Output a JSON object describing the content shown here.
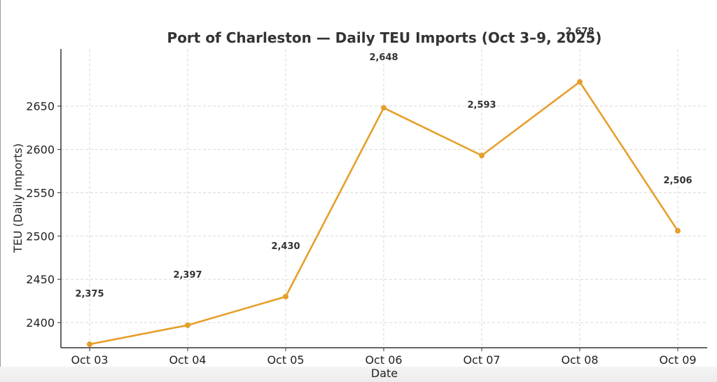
{
  "chart_data": {
    "type": "line",
    "title": "Port of Charleston — Daily TEU Imports (Oct 3–9, 2025)",
    "xlabel": "Date",
    "ylabel": "TEU (Daily Imports)",
    "categories": [
      "Oct 03",
      "Oct 04",
      "Oct 05",
      "Oct 06",
      "Oct 07",
      "Oct 08",
      "Oct 09"
    ],
    "series": [
      {
        "values": [
          2375,
          2397,
          2430,
          2648,
          2593,
          2678,
          2506
        ],
        "labels": [
          "2,375",
          "2,397",
          "2,430",
          "2,648",
          "2,593",
          "2,678",
          "2,506"
        ],
        "color": "#E69F2A"
      }
    ],
    "yticks": [
      2400,
      2450,
      2500,
      2550,
      2600,
      2650
    ],
    "ylim": [
      2371,
      2716
    ],
    "grid": true,
    "legend": "none"
  }
}
